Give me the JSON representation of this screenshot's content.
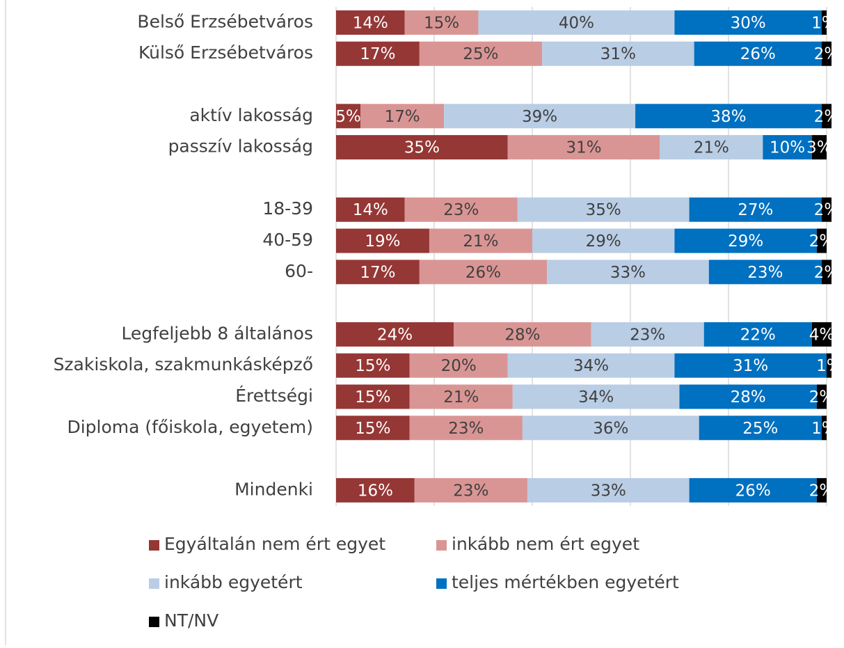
{
  "chart_data": {
    "type": "stacked-bar-horizontal",
    "categories": [
      "Belső Erzsébetváros",
      "Külső Erzsébetváros",
      null,
      "aktív lakosság",
      "passzív lakosság",
      null,
      "18-39",
      "40-59",
      "60-",
      null,
      "Legfeljebb 8 általános",
      "Szakiskola, szakmunkásképző",
      "Érettségi",
      "Diploma (főiskola, egyetem)",
      null,
      "Mindenki"
    ],
    "series": [
      {
        "name": "Egyáltalán nem ért egyet",
        "color": "#953735",
        "values": [
          14,
          17,
          null,
          5,
          35,
          null,
          14,
          19,
          17,
          null,
          24,
          15,
          15,
          15,
          null,
          16
        ]
      },
      {
        "name": "inkább nem ért egyet",
        "color": "#d99594",
        "values": [
          15,
          25,
          null,
          17,
          31,
          null,
          23,
          21,
          26,
          null,
          28,
          20,
          21,
          23,
          null,
          23
        ]
      },
      {
        "name": "inkább egyetért",
        "color": "#b9cde5",
        "values": [
          40,
          31,
          null,
          39,
          21,
          null,
          35,
          29,
          33,
          null,
          23,
          34,
          34,
          36,
          null,
          33
        ]
      },
      {
        "name": "teljes mértékben egyetért",
        "color": "#0070c0",
        "values": [
          30,
          26,
          null,
          38,
          10,
          null,
          27,
          29,
          23,
          null,
          22,
          31,
          28,
          25,
          null,
          26
        ]
      },
      {
        "name": "NT/NV",
        "color": "#000000",
        "values": [
          1,
          2,
          null,
          2,
          3,
          null,
          2,
          2,
          2,
          null,
          4,
          1,
          2,
          1,
          null,
          2
        ]
      }
    ],
    "xlim": [
      0,
      100
    ],
    "xticks": [
      0,
      20,
      40,
      60,
      80,
      100
    ],
    "grid": true,
    "legend": "bottom"
  }
}
